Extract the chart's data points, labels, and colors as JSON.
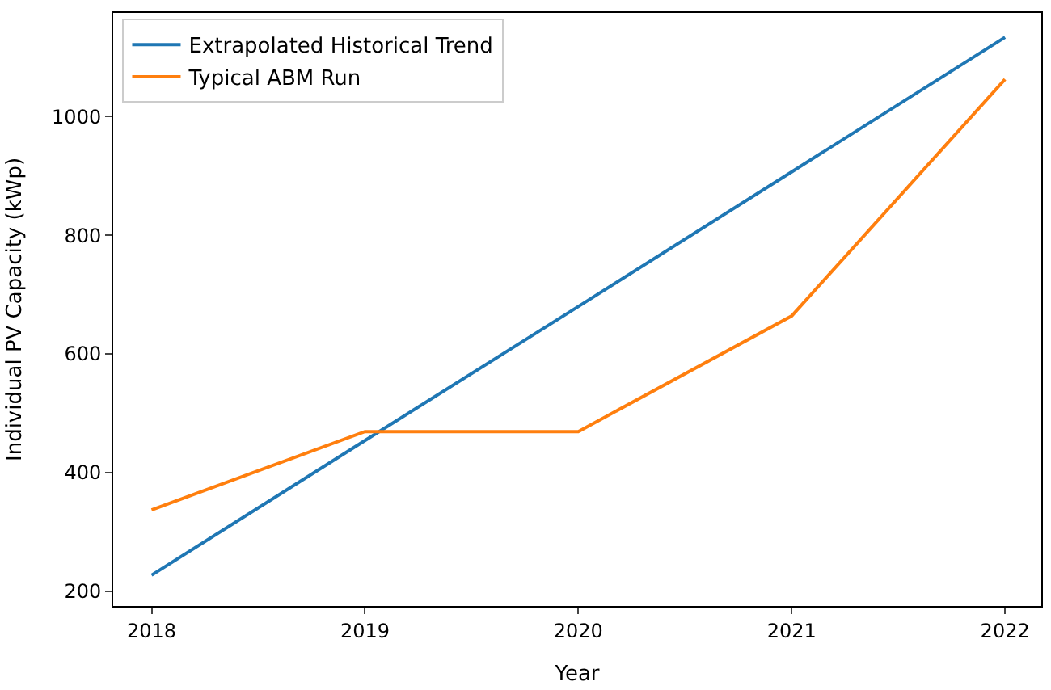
{
  "chart_data": {
    "type": "line",
    "xlabel": "Year",
    "ylabel": "Individual PV Capacity (kWp)",
    "x": [
      2018,
      2019,
      2020,
      2021,
      2022
    ],
    "series": [
      {
        "name": "Extrapolated Historical Trend",
        "color": "#1f77b4",
        "values": [
          227,
          454,
          680,
          907,
          1134
        ]
      },
      {
        "name": "Typical ABM Run",
        "color": "#ff7f0e",
        "values": [
          337,
          469,
          469,
          664,
          1063
        ]
      }
    ],
    "xlim": [
      2017.82,
      2022.17
    ],
    "xticks": [
      2018,
      2019,
      2020,
      2021,
      2022
    ],
    "ylim": [
      175,
      1175
    ],
    "yticks": [
      200,
      400,
      600,
      800,
      1000
    ],
    "legend": "top left",
    "marker": "none",
    "line_style": "solid"
  }
}
